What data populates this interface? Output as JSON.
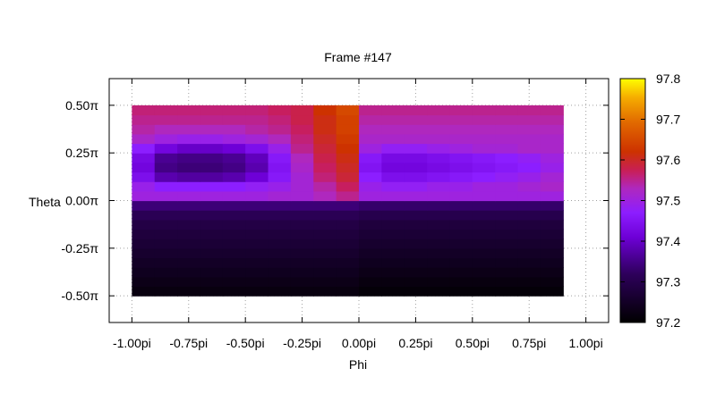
{
  "chart_data": {
    "type": "heatmap",
    "title": "Frame #147",
    "xlabel": "Phi",
    "ylabel": "Theta",
    "xlim": [
      -1.1,
      1.1
    ],
    "ylim": [
      -0.64,
      0.64
    ],
    "x_ticks": [
      {
        "value": -1.0,
        "label": "-1.00pi"
      },
      {
        "value": -0.75,
        "label": "-0.75pi"
      },
      {
        "value": -0.5,
        "label": "-0.50pi"
      },
      {
        "value": -0.25,
        "label": "-0.25pi"
      },
      {
        "value": 0.0,
        "label": "0.00pi"
      },
      {
        "value": 0.25,
        "label": "0.25pi"
      },
      {
        "value": 0.5,
        "label": "0.50pi"
      },
      {
        "value": 0.75,
        "label": "0.75pi"
      },
      {
        "value": 1.0,
        "label": "1.00pi"
      }
    ],
    "y_ticks": [
      {
        "value": 0.5,
        "label": "0.50π"
      },
      {
        "value": 0.25,
        "label": "0.25π"
      },
      {
        "value": 0.0,
        "label": "0.00π"
      },
      {
        "value": -0.25,
        "label": "-0.25π"
      },
      {
        "value": -0.5,
        "label": "-0.50π"
      }
    ],
    "grid": true,
    "colorbar": {
      "min": 97.2,
      "max": 97.8,
      "ticks": [
        {
          "value": 97.8,
          "label": "97.8"
        },
        {
          "value": 97.7,
          "label": "97.7"
        },
        {
          "value": 97.6,
          "label": "97.6"
        },
        {
          "value": 97.5,
          "label": "97.5"
        },
        {
          "value": 97.4,
          "label": "97.4"
        },
        {
          "value": 97.3,
          "label": "97.3"
        },
        {
          "value": 97.2,
          "label": "97.2"
        }
      ]
    },
    "data_extent": {
      "x": [
        -1.0,
        0.9
      ],
      "y": [
        -0.5,
        0.5
      ]
    },
    "grid_size": {
      "nx": 19,
      "ny": 20
    },
    "values": [
      [
        97.22,
        97.22,
        97.22,
        97.22,
        97.22,
        97.22,
        97.22,
        97.22,
        97.22,
        97.22,
        97.21,
        97.21,
        97.21,
        97.21,
        97.21,
        97.21,
        97.21,
        97.21,
        97.21
      ],
      [
        97.23,
        97.23,
        97.23,
        97.23,
        97.23,
        97.23,
        97.23,
        97.23,
        97.23,
        97.23,
        97.22,
        97.22,
        97.22,
        97.22,
        97.22,
        97.22,
        97.22,
        97.22,
        97.22
      ],
      [
        97.24,
        97.24,
        97.24,
        97.24,
        97.24,
        97.24,
        97.24,
        97.24,
        97.24,
        97.24,
        97.23,
        97.23,
        97.23,
        97.23,
        97.23,
        97.23,
        97.23,
        97.23,
        97.23
      ],
      [
        97.25,
        97.25,
        97.25,
        97.25,
        97.25,
        97.25,
        97.25,
        97.25,
        97.25,
        97.25,
        97.24,
        97.24,
        97.24,
        97.24,
        97.24,
        97.24,
        97.24,
        97.24,
        97.24
      ],
      [
        97.26,
        97.26,
        97.26,
        97.26,
        97.26,
        97.26,
        97.26,
        97.26,
        97.26,
        97.26,
        97.25,
        97.25,
        97.25,
        97.25,
        97.25,
        97.25,
        97.25,
        97.25,
        97.25
      ],
      [
        97.27,
        97.27,
        97.27,
        97.27,
        97.27,
        97.27,
        97.27,
        97.27,
        97.27,
        97.27,
        97.26,
        97.26,
        97.26,
        97.26,
        97.26,
        97.26,
        97.26,
        97.26,
        97.26
      ],
      [
        97.28,
        97.28,
        97.28,
        97.28,
        97.28,
        97.28,
        97.28,
        97.28,
        97.28,
        97.28,
        97.27,
        97.27,
        97.27,
        97.27,
        97.27,
        97.27,
        97.27,
        97.27,
        97.27
      ],
      [
        97.29,
        97.29,
        97.29,
        97.29,
        97.29,
        97.29,
        97.29,
        97.29,
        97.29,
        97.29,
        97.28,
        97.28,
        97.28,
        97.28,
        97.28,
        97.28,
        97.28,
        97.28,
        97.28
      ],
      [
        97.31,
        97.31,
        97.31,
        97.31,
        97.31,
        97.31,
        97.31,
        97.31,
        97.31,
        97.31,
        97.3,
        97.3,
        97.3,
        97.3,
        97.3,
        97.3,
        97.3,
        97.3,
        97.3
      ],
      [
        97.34,
        97.34,
        97.34,
        97.34,
        97.34,
        97.34,
        97.34,
        97.34,
        97.34,
        97.34,
        97.33,
        97.33,
        97.33,
        97.33,
        97.33,
        97.33,
        97.33,
        97.33,
        97.33
      ],
      [
        97.5,
        97.5,
        97.5,
        97.5,
        97.5,
        97.5,
        97.51,
        97.51,
        97.53,
        97.55,
        97.5,
        97.5,
        97.5,
        97.5,
        97.5,
        97.5,
        97.5,
        97.5,
        97.5
      ],
      [
        97.49,
        97.47,
        97.47,
        97.47,
        97.47,
        97.48,
        97.49,
        97.51,
        97.54,
        97.57,
        97.49,
        97.48,
        97.48,
        97.49,
        97.49,
        97.5,
        97.5,
        97.51,
        97.52
      ],
      [
        97.44,
        97.38,
        97.37,
        97.37,
        97.38,
        97.41,
        97.46,
        97.51,
        97.56,
        97.59,
        97.47,
        97.44,
        97.44,
        97.45,
        97.46,
        97.47,
        97.48,
        97.49,
        97.51
      ],
      [
        97.42,
        97.35,
        97.34,
        97.34,
        97.35,
        97.38,
        97.45,
        97.52,
        97.57,
        97.6,
        97.45,
        97.42,
        97.42,
        97.43,
        97.44,
        97.45,
        97.46,
        97.47,
        97.49
      ],
      [
        97.43,
        97.36,
        97.35,
        97.35,
        97.36,
        97.39,
        97.46,
        97.53,
        97.58,
        97.61,
        97.46,
        97.43,
        97.43,
        97.44,
        97.45,
        97.46,
        97.47,
        97.48,
        97.5
      ],
      [
        97.47,
        97.42,
        97.4,
        97.4,
        97.41,
        97.44,
        97.49,
        97.55,
        97.59,
        97.62,
        97.5,
        97.48,
        97.48,
        97.49,
        97.5,
        97.51,
        97.51,
        97.52,
        97.52
      ],
      [
        97.52,
        97.5,
        97.49,
        97.49,
        97.5,
        97.51,
        97.53,
        97.56,
        97.6,
        97.63,
        97.52,
        97.52,
        97.52,
        97.52,
        97.52,
        97.52,
        97.52,
        97.52,
        97.52
      ],
      [
        97.54,
        97.53,
        97.53,
        97.53,
        97.53,
        97.54,
        97.55,
        97.57,
        97.61,
        97.64,
        97.53,
        97.53,
        97.53,
        97.53,
        97.53,
        97.53,
        97.53,
        97.53,
        97.53
      ],
      [
        97.55,
        97.55,
        97.55,
        97.55,
        97.55,
        97.55,
        97.56,
        97.58,
        97.61,
        97.64,
        97.54,
        97.54,
        97.54,
        97.54,
        97.54,
        97.54,
        97.54,
        97.54,
        97.54
      ],
      [
        97.56,
        97.56,
        97.56,
        97.56,
        97.56,
        97.56,
        97.57,
        97.58,
        97.62,
        97.65,
        97.55,
        97.55,
        97.55,
        97.55,
        97.55,
        97.55,
        97.55,
        97.55,
        97.55
      ]
    ]
  }
}
